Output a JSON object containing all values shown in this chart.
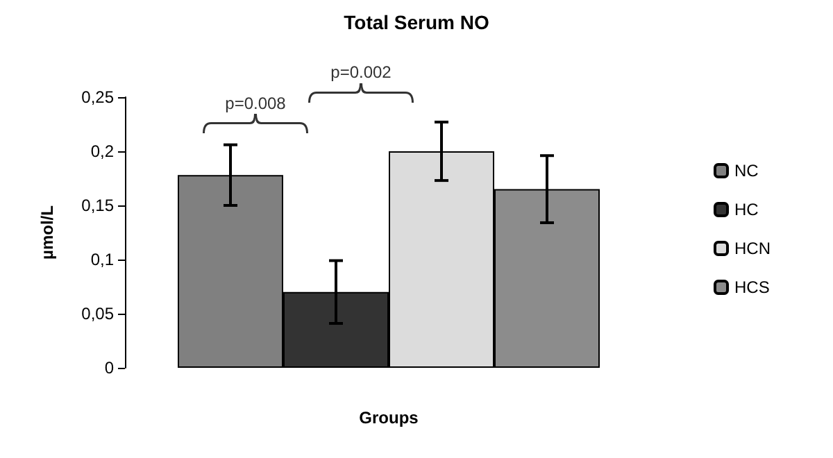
{
  "chart_data": {
    "type": "bar",
    "title": "Total Serum NO",
    "xlabel": "Groups",
    "ylabel": "µmol/L",
    "categories": [
      null
    ],
    "series": [
      {
        "name": "NC",
        "color": "#808080",
        "values": [
          0.178
        ],
        "errors": [
          0.028
        ]
      },
      {
        "name": "HC",
        "color": "#333333",
        "values": [
          0.07
        ],
        "errors": [
          0.029
        ]
      },
      {
        "name": "HCN",
        "color": "#dcdcdc",
        "values": [
          0.2
        ],
        "errors": [
          0.027
        ]
      },
      {
        "name": "HCS",
        "color": "#8c8c8c",
        "values": [
          0.165
        ],
        "errors": [
          0.031
        ]
      }
    ],
    "ylim": [
      0,
      0.25
    ],
    "yticks": [
      0,
      {
        "value": 0.05,
        "label": "0,05"
      },
      {
        "value": 0.1,
        "label": "0,1"
      },
      {
        "value": 0.15,
        "label": "0,15"
      },
      {
        "value": 0.2,
        "label": "0,2"
      },
      {
        "value": 0.25,
        "label": "0,25"
      }
    ],
    "annotations": [
      "p=0.008",
      "p=0.002"
    ],
    "grid": false,
    "legend": "right"
  }
}
